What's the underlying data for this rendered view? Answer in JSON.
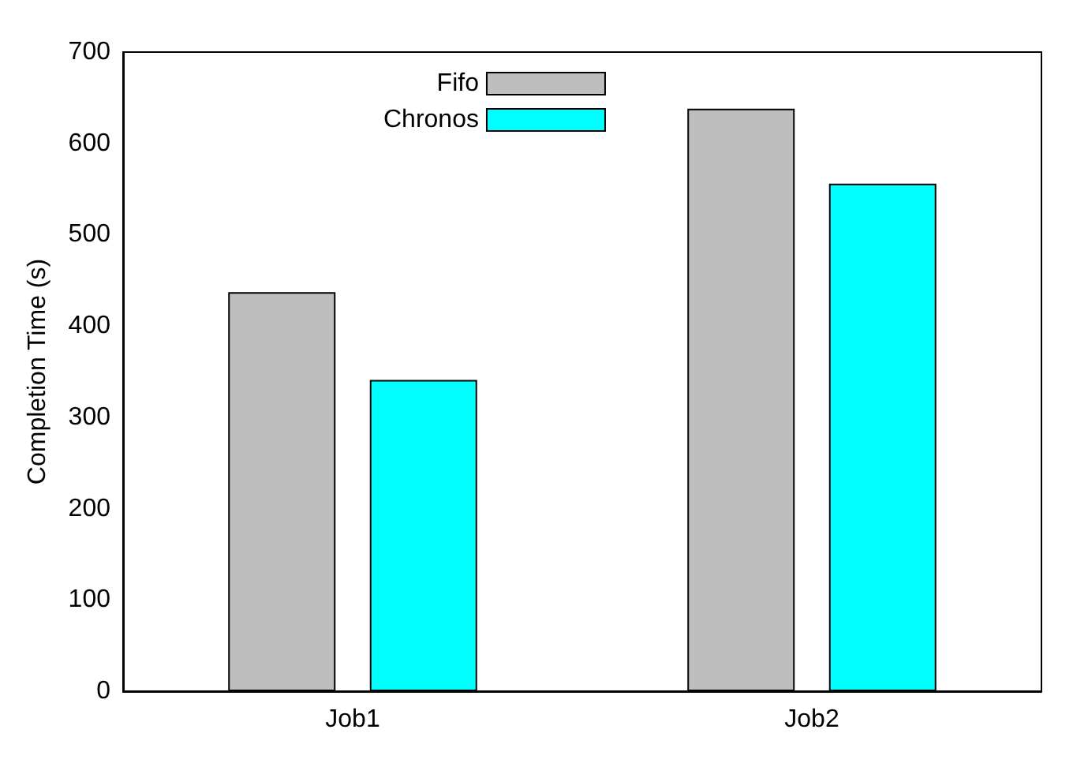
{
  "chart_data": {
    "type": "bar",
    "ylabel": "Completion Time (s)",
    "categories": [
      "Job1",
      "Job2"
    ],
    "series": [
      {
        "name": "Fifo",
        "color": "#bebebe",
        "values": [
          437,
          638
        ]
      },
      {
        "name": "Chronos",
        "color": "#00ffff",
        "values": [
          341,
          556
        ]
      }
    ],
    "ylim": [
      0,
      700
    ],
    "yticks": [
      0,
      100,
      200,
      300,
      400,
      500,
      600,
      700
    ],
    "grid": false,
    "legend": "top left"
  }
}
